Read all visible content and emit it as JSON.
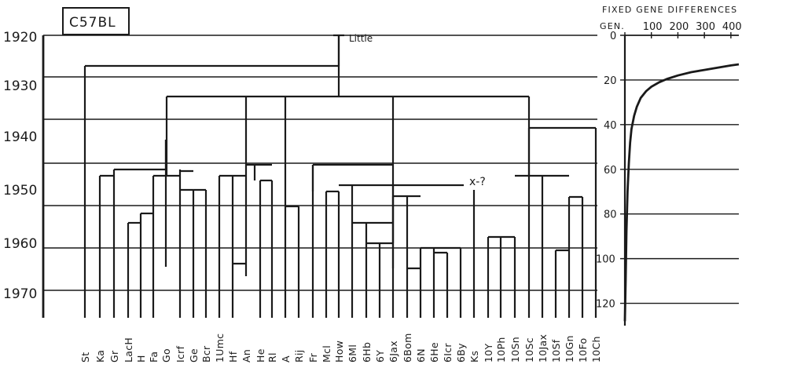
{
  "title": "C57BL",
  "founder_label": "Little",
  "uncertain_label": "x-?",
  "year_axis": [
    "1920",
    "1930",
    "1940",
    "1950",
    "1960",
    "1970"
  ],
  "substrains": [
    "St",
    "Ka",
    "Gr",
    "LacH",
    "H",
    "Fa",
    "Go",
    "Icrf",
    "Ge",
    "Bcr",
    "1Umc",
    "Hf",
    "An",
    "He",
    "Rl",
    "A",
    "Rij",
    "Fr",
    "Mcl",
    "How",
    "6Ml",
    "6Hb",
    "6Y",
    "6Jax",
    "6Bom",
    "6N",
    "6He",
    "6Icr",
    "6By",
    "Ks",
    "10Y",
    "10Ph",
    "10Sn",
    "10Sc",
    "10Jax",
    "10Sf",
    "10Gn",
    "10Fo",
    "10Ch"
  ],
  "chart_data": {
    "type": "line",
    "title": "FIXED GENE DIFFERENCES",
    "xlabel": "GEN.",
    "x_ticks": [
      0,
      100,
      200,
      300,
      400
    ],
    "y_ticks": [
      0,
      20,
      40,
      60,
      80,
      100,
      120
    ],
    "xlim": [
      0,
      430
    ],
    "ylim": [
      0,
      130
    ],
    "series": [
      {
        "x": [
          0,
          3,
          6,
          10,
          15,
          20,
          25,
          35,
          45,
          60,
          80,
          100,
          130,
          160,
          200,
          250,
          300,
          350,
          400,
          430
        ],
        "y": [
          128,
          110,
          88,
          70,
          57,
          48,
          42,
          36,
          32,
          28,
          25,
          23,
          21,
          19.5,
          18,
          16.5,
          15.5,
          14.5,
          13.5,
          13
        ]
      }
    ]
  }
}
